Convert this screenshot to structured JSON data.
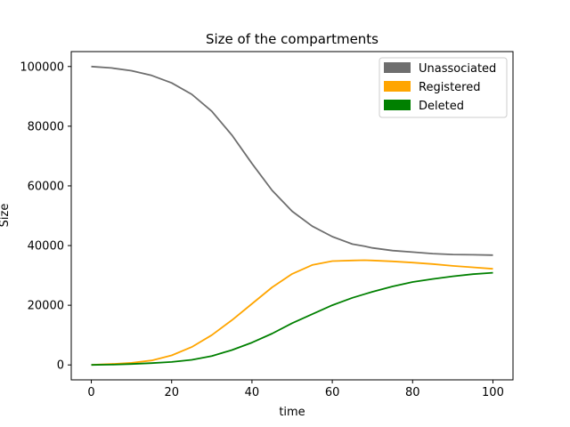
{
  "chart_data": {
    "type": "line",
    "title": "Size of the compartments",
    "xlabel": "time",
    "ylabel": "Size",
    "xlim": [
      -5,
      105
    ],
    "ylim": [
      -5000,
      105000
    ],
    "xticks": [
      0,
      20,
      40,
      60,
      80,
      100
    ],
    "yticks": [
      0,
      20000,
      40000,
      60000,
      80000,
      100000
    ],
    "grid": false,
    "legend_position": "top-right",
    "x": [
      0,
      5,
      10,
      15,
      20,
      25,
      30,
      35,
      40,
      45,
      50,
      55,
      60,
      65,
      68,
      70,
      75,
      80,
      85,
      90,
      95,
      100
    ],
    "series": [
      {
        "name": "Unassociated",
        "color": "#6e6e6e",
        "values": [
          100000,
          99500,
          98600,
          97000,
          94500,
          90700,
          85000,
          77000,
          67500,
          58500,
          51500,
          46500,
          43000,
          40500,
          39800,
          39200,
          38300,
          37800,
          37300,
          37000,
          36900,
          36800
        ]
      },
      {
        "name": "Registered",
        "color": "#ffa500",
        "values": [
          0,
          300,
          700,
          1500,
          3200,
          6000,
          10000,
          15000,
          20500,
          26000,
          30500,
          33500,
          34800,
          35000,
          35100,
          35000,
          34700,
          34300,
          33800,
          33200,
          32700,
          32200
        ]
      },
      {
        "name": "Deleted",
        "color": "#008000",
        "values": [
          0,
          100,
          300,
          600,
          1000,
          1700,
          3000,
          5000,
          7500,
          10500,
          14000,
          17000,
          20000,
          22500,
          23700,
          24500,
          26300,
          27800,
          28800,
          29700,
          30400,
          30900
        ]
      }
    ]
  }
}
